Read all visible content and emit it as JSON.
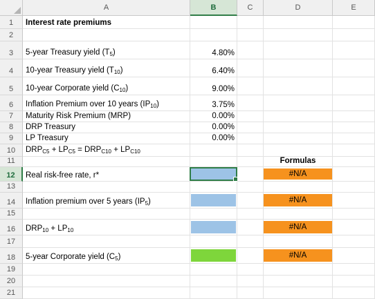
{
  "columns": [
    "A",
    "B",
    "C",
    "D",
    "E"
  ],
  "selected_column": "B",
  "rows": [
    "1",
    "2",
    "3",
    "4",
    "5",
    "6",
    "7",
    "8",
    "9",
    "10",
    "11",
    "12",
    "13",
    "14",
    "15",
    "16",
    "17",
    "18",
    "19",
    "20",
    "21"
  ],
  "selected_row": "12",
  "cells": {
    "title": "Interest rate premiums",
    "t5_label": "5-year Treasury yield (T",
    "t5_sub": "5",
    "t5_close": ")",
    "t5_value": "4.80%",
    "t10_label": "10-year Treasury yield (T",
    "t10_sub": "10",
    "t10_close": ")",
    "t10_value": "6.40%",
    "c10_label": "10-year Corporate yield (C",
    "c10_sub": "10",
    "c10_close": ")",
    "c10_value": "9.00%",
    "ip10_label": "Inflation Premium over 10 years (IP",
    "ip10_sub": "10",
    "ip10_close": ")",
    "ip10_value": "3.75%",
    "mrp_label": "Maturity Risk Premium (MRP)",
    "mrp_value": "0.00%",
    "drp_label": "DRP Treasury",
    "drp_value": "0.00%",
    "lp_label": "LP Treasury",
    "lp_value": "0.00%",
    "eq_drp": "DRP",
    "eq_c5a": "C5",
    "eq_plus_lp": " + LP",
    "eq_c5b": "C5",
    "eq_eq_drp": " = DRP",
    "eq_c10a": "C10",
    "eq_plus_lp2": " + LP",
    "eq_c10b": "C10",
    "formulas_header": "Formulas",
    "rrf_label": "Real risk-free rate, r*",
    "rrf_formula": "#N/A",
    "ip5_label": "Inflation premium over 5 years (IP",
    "ip5_sub": "5",
    "ip5_close": ")",
    "ip5_formula": "#N/A",
    "drp10_label": "DRP",
    "drp10_sub": "10",
    "drp10_mid": " + LP",
    "drp10_sub2": "10",
    "drp10_formula": "#N/A",
    "c5_label": "5-year Corporate yield (C",
    "c5_sub": "5",
    "c5_close": ")",
    "c5_formula": "#N/A"
  },
  "colors": {
    "input_fill": "#9dc3e6",
    "result_fill": "#7ed63b",
    "formula_fill": "#f6921e",
    "selection": "#2f7d47"
  }
}
